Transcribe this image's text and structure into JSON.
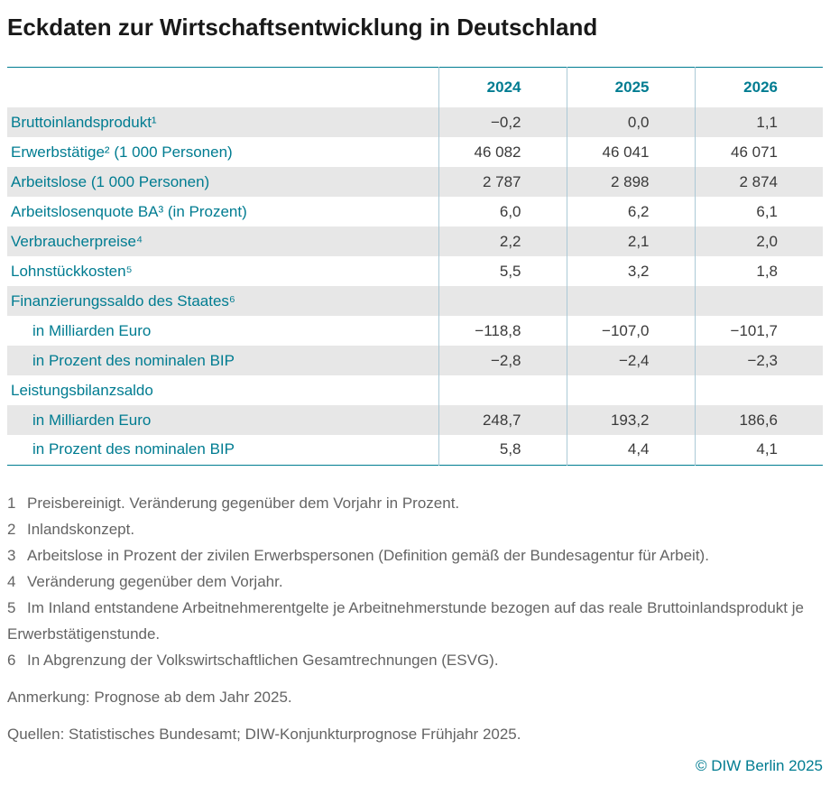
{
  "page": {
    "title": "Eckdaten zur Wirtschaftsentwicklung in Deutschland",
    "copyright": "© DIW Berlin 2025"
  },
  "colors": {
    "accent": "#007c91",
    "title-text": "#191919",
    "value-text": "#3a3a3a",
    "row-shade": "#e7e7e7",
    "separator": "#abc9d6",
    "muted-text": "#646464"
  },
  "table": {
    "columns": [
      "2024",
      "2025",
      "2026"
    ],
    "rows": [
      {
        "label": "Bruttoinlandsprodukt¹",
        "values": [
          "−0,2",
          "0,0",
          "1,1"
        ]
      },
      {
        "label": "Erwerbstätige² (1 000 Personen)",
        "values": [
          "46 082",
          "46 041",
          "46 071"
        ]
      },
      {
        "label": "Arbeitslose (1 000 Personen)",
        "values": [
          "2 787",
          "2 898",
          "2 874"
        ]
      },
      {
        "label": "Arbeitslosenquote BA³ (in Prozent)",
        "values": [
          "6,0",
          "6,2",
          "6,1"
        ]
      },
      {
        "label": "Verbraucherpreise⁴",
        "values": [
          "2,2",
          "2,1",
          "2,0"
        ]
      },
      {
        "label": "Lohnstückkosten⁵",
        "values": [
          "5,5",
          "3,2",
          "1,8"
        ]
      },
      {
        "label": "Finanzierungssaldo des Staates⁶",
        "values": [
          "",
          "",
          ""
        ]
      },
      {
        "label": "in Milliarden Euro",
        "values": [
          "−118,8",
          "−107,0",
          "−101,7"
        ]
      },
      {
        "label": "in Prozent des nominalen BIP",
        "values": [
          "−2,8",
          "−2,4",
          "−2,3"
        ]
      },
      {
        "label": "Leistungsbilanzsaldo",
        "values": [
          "",
          "",
          ""
        ]
      },
      {
        "label": "in Milliarden Euro",
        "values": [
          "248,7",
          "193,2",
          "186,6"
        ]
      },
      {
        "label": "in Prozent des nominalen BIP",
        "values": [
          "5,8",
          "4,4",
          "4,1"
        ]
      }
    ]
  },
  "footnotes": [
    {
      "num": "1",
      "text": "Preisbereinigt. Veränderung gegenüber dem Vorjahr in Prozent."
    },
    {
      "num": "2",
      "text": "Inlandskonzept."
    },
    {
      "num": "3",
      "text": "Arbeitslose in Prozent der zivilen Erwerbspersonen (Definition gemäß der Bundesagentur für Arbeit)."
    },
    {
      "num": "4",
      "text": "Veränderung gegenüber dem Vorjahr."
    },
    {
      "num": "5",
      "text": "Im Inland entstandene Arbeitnehmerentgelte je Arbeitnehmerstunde bezogen auf das reale Bruttoinlandsprodukt je Erwerbstätigenstunde."
    },
    {
      "num": "6",
      "text": "In Abgrenzung der Volkswirtschaftlichen Gesamtrechnungen (ESVG)."
    }
  ],
  "notes": {
    "anmerkung": "Anmerkung: Prognose ab dem Jahr 2025.",
    "quellen": "Quellen: Statistisches Bundesamt; DIW-Konjunkturprognose Frühjahr 2025."
  }
}
